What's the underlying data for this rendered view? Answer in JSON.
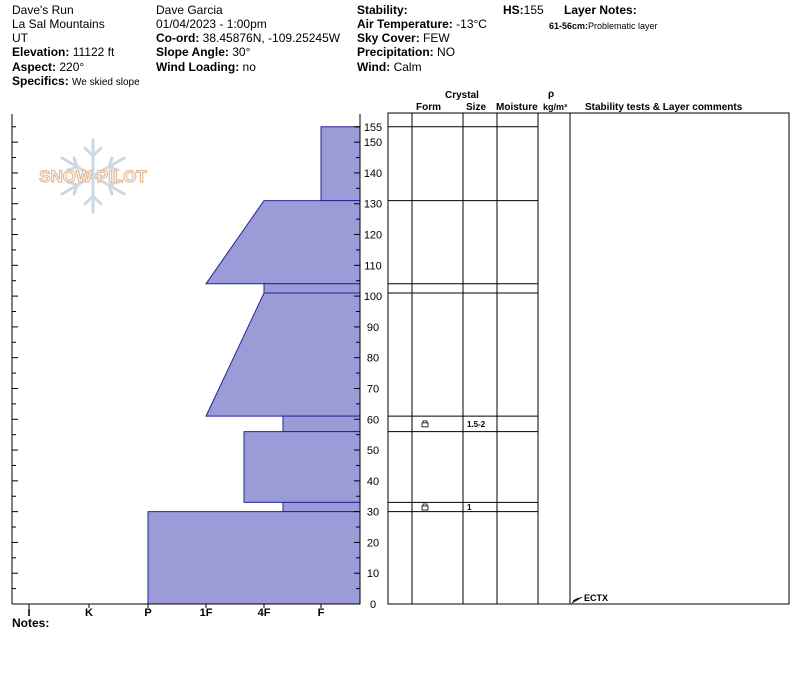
{
  "header": {
    "site": "Dave's Run",
    "range": "La Sal Mountains",
    "state": "UT",
    "elevation_label": "Elevation:",
    "elevation_value": "11122 ft",
    "aspect_label": "Aspect:",
    "aspect_value": "220°",
    "specifics_label": "Specifics:",
    "specifics_value": "We skied slope",
    "observer": "Dave Garcia",
    "datetime": "01/04/2023 - 1:00pm",
    "coord_label": "Co-ord:",
    "coord_value": "38.45876N, -109.25245W",
    "slope_label": "Slope Angle:",
    "slope_value": "30°",
    "wind_loading_label": "Wind Loading:",
    "wind_loading_value": "no",
    "stability_label": "Stability:",
    "air_temp_label": "Air Temperature:",
    "air_temp_value": "-13°C",
    "sky_label": "Sky Cover:",
    "sky_value": "FEW",
    "precip_label": "Precipitation:",
    "precip_value": "NO",
    "wind_label": "Wind:",
    "wind_value": "Calm",
    "hs_label": "HS:",
    "hs_value": "155",
    "layer_notes_label": "Layer Notes:",
    "layer_note_depth": "61-56cm:",
    "layer_note_text": "Problematic layer"
  },
  "logo": {
    "text": "SNOW PILOT"
  },
  "columns": {
    "crystal": "Crystal",
    "form": "Form",
    "size": "Size",
    "moisture": "Moisture",
    "rho": "ρ",
    "density_unit": "kg/m³",
    "comments": "Stability tests & Layer comments"
  },
  "notes_label": "Notes:",
  "stability_test": "ECTX",
  "chart_data": {
    "type": "area",
    "title": "",
    "ylabel": "",
    "xlabel": "",
    "ylim": [
      0,
      155
    ],
    "y_ticks": [
      0,
      10,
      20,
      30,
      40,
      50,
      60,
      70,
      80,
      90,
      100,
      110,
      120,
      130,
      140,
      150,
      155
    ],
    "hardness_scale": [
      "I",
      "K",
      "P",
      "1F",
      "4F",
      "F"
    ],
    "hardness_profile": [
      {
        "top_cm": 155,
        "bottom_cm": 131,
        "hardness_top": "F",
        "hardness_bottom": "F"
      },
      {
        "top_cm": 131,
        "bottom_cm": 104,
        "hardness_top": "4F",
        "hardness_bottom": "1F"
      },
      {
        "top_cm": 104,
        "bottom_cm": 101,
        "hardness_top": "4F",
        "hardness_bottom": "4F"
      },
      {
        "top_cm": 101,
        "bottom_cm": 61,
        "hardness_top": "4F",
        "hardness_bottom": "1F"
      },
      {
        "top_cm": 61,
        "bottom_cm": 56,
        "hardness_top": "4F+",
        "hardness_bottom": "4F+"
      },
      {
        "top_cm": 56,
        "bottom_cm": 33,
        "hardness_top": "4F-",
        "hardness_bottom": "4F-"
      },
      {
        "top_cm": 33,
        "bottom_cm": 30,
        "hardness_top": "4F+",
        "hardness_bottom": "4F+"
      },
      {
        "top_cm": 30,
        "bottom_cm": 0,
        "hardness_top": "P",
        "hardness_bottom": "P"
      }
    ],
    "layer_boundaries_cm": [
      155,
      131,
      104,
      101,
      61,
      56,
      33,
      30,
      0
    ],
    "layers": [
      {
        "depth_label": "61-56",
        "grain_form": "faceted",
        "size": "1.5-2"
      },
      {
        "depth_label": "33-30",
        "grain_form": "faceted",
        "size": "1"
      }
    ],
    "grid": false,
    "legend": "none"
  }
}
